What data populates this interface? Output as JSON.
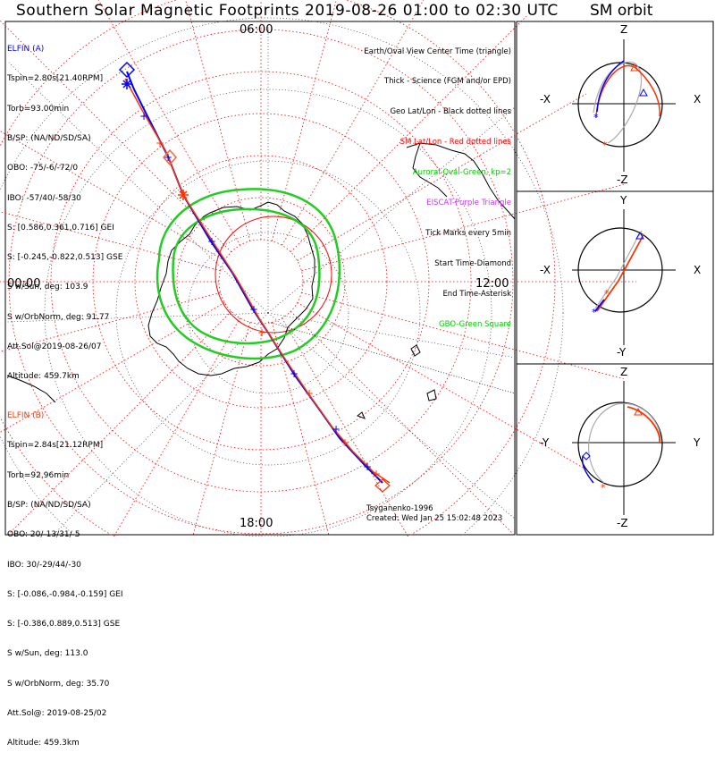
{
  "title": "Southern Solar Magnetic Footprints 2019-08-26 01:00 to 02:30 UTC",
  "sm_orbit_title": "SM orbit",
  "clock_labels": {
    "top": "06:00",
    "left": "00:00",
    "right": "12:00",
    "bottom": "18:00"
  },
  "elfin_a": {
    "name": "ELFIN (A)",
    "color": "#0000ff",
    "lines": [
      "Tspin=2.80s[21.40RPM]",
      "Torb=93.00min",
      "B/SP: (NA/ND/SD/SA)",
      "OBO: -75/-6/-72/0",
      "IBO: -57/40/-58/30",
      "S: [0.586,0.361,0.716] GEI",
      "S: [-0.245,-0.822,0.513] GSE",
      "S w/Sun, deg: 103.9",
      "S w/OrbNorm, deg: 91.77",
      "Att.Sol@2019-08-26/07",
      "Altitude: 459.7km"
    ]
  },
  "elfin_b": {
    "name": "ELFIN (B)",
    "color": "#ff3300",
    "lines": [
      "Tspin=2.84s[21.12RPM]",
      "Torb=92.96min",
      "B/SP: (NA/ND/SD/SA)",
      "OBO: 20/-13/31/-5",
      "IBO: 30/-29/44/-30",
      "S: [-0.086,-0.984,-0.159] GEI",
      "S: [-0.386,0.889,0.513] GSE",
      "S w/Sun, deg: 113.0",
      "S w/OrbNorm, deg: 35.70",
      "Att.Sol@: 2019-08-25/02",
      "Altitude: 459.3km"
    ]
  },
  "legend": [
    {
      "text": "Earth/Oval View Center Time (triangle)",
      "color": "#000000"
    },
    {
      "text": "Thick - Science (FGM and/or EPD)",
      "color": "#000000"
    },
    {
      "text": "Geo Lat/Lon - Black dotted lines",
      "color": "#000000"
    },
    {
      "text": "SM Lat/Lon - Red dotted lines",
      "color": "#ff0000"
    },
    {
      "text": "Auroral Oval-Green, kp=2",
      "color": "#00cc00"
    },
    {
      "text": "EISCAT-Purple Triangle",
      "color": "#cc33ff"
    },
    {
      "text": "Tick Marks every 5min",
      "color": "#000000"
    },
    {
      "text": "Start Time-Diamond",
      "color": "#000000"
    },
    {
      "text": "End Time-Asterisk",
      "color": "#000000"
    },
    {
      "text": "GBO-Green Square",
      "color": "#00cc00"
    }
  ],
  "credits": [
    "Tsyganenko-1996",
    "Created: Wed Jan 25 15:02:48 2023"
  ],
  "orbit_panels": [
    {
      "top": "Z",
      "bottom": "-Z",
      "left": "-X",
      "right": "X"
    },
    {
      "top": "Y",
      "bottom": "-Y",
      "left": "-X",
      "right": "X"
    },
    {
      "top": "Z",
      "bottom": "-Z",
      "left": "-Y",
      "right": "Y"
    }
  ],
  "colors": {
    "elfin_a": "#0000ff",
    "elfin_b": "#ff3300",
    "auroral_oval": "#22cc22",
    "sm_grid": "#ff0000",
    "geo_grid": "#000000",
    "coastline": "#000000"
  }
}
